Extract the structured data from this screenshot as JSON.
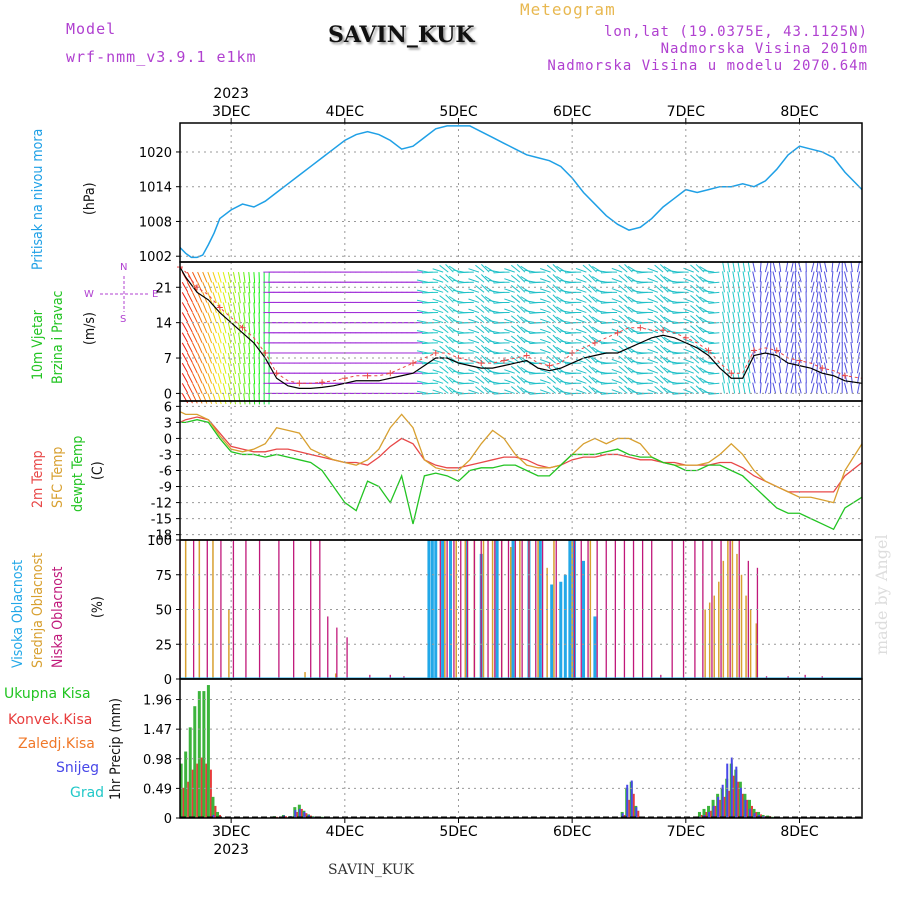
{
  "header": {
    "model_label": "Model",
    "model_name": "wrf-nmm_v3.9.1 e1km",
    "title": "SAVIN_KUK",
    "meteogram": "Meteogram",
    "lonlat": "lon,lat (19.0375E, 43.1125N)",
    "altitude": "Nadmorska Visina 2010m",
    "model_altitude": "Nadmorska Visina u modelu 2070.64m",
    "bottom_title": "SAVIN_KUK",
    "watermark": "made by Angel"
  },
  "colors": {
    "pressure": "#1fa0e6",
    "wind_label": "#22c422",
    "wind_axis": "#b040d0",
    "temp2m": "#e84848",
    "sfc_temp": "#d8a030",
    "dewpt": "#22c422",
    "high_cloud": "#22a8e8",
    "mid_cloud": "#d8a030",
    "low_cloud": "#c0187a",
    "total_precip": "#3cb43c",
    "convective": "#e83c3c",
    "frozen": "#f07828",
    "snow": "#4848e8",
    "hail": "#22c8c8"
  },
  "chart_data": [
    {
      "type": "line",
      "name": "pressure",
      "ylabel_main": "Pritisak na nivou mora",
      "ylabel_unit": "(hPa)",
      "yticks": [
        "1002",
        "1008",
        "1014",
        "1020"
      ],
      "ylim": [
        1001,
        1025
      ],
      "date_labels": [
        "3DEC",
        "4DEC",
        "5DEC",
        "6DEC",
        "7DEC",
        "8DEC"
      ],
      "year_label": "2023",
      "x": [
        2.55,
        2.6,
        2.65,
        2.7,
        2.75,
        2.8,
        2.85,
        2.9,
        3.0,
        3.1,
        3.2,
        3.3,
        3.4,
        3.5,
        3.6,
        3.7,
        3.8,
        3.9,
        4.0,
        4.1,
        4.2,
        4.3,
        4.4,
        4.5,
        4.6,
        4.7,
        4.8,
        4.9,
        5.0,
        5.1,
        5.2,
        5.3,
        5.4,
        5.5,
        5.6,
        5.7,
        5.8,
        5.9,
        6.0,
        6.1,
        6.2,
        6.3,
        6.4,
        6.5,
        6.6,
        6.7,
        6.8,
        6.9,
        7.0,
        7.1,
        7.2,
        7.3,
        7.4,
        7.5,
        7.6,
        7.7,
        7.8,
        7.9,
        8.0,
        8.1,
        8.2,
        8.3,
        8.4,
        8.55
      ],
      "y": [
        1003.5,
        1002.5,
        1001.8,
        1001.8,
        1002.2,
        1004,
        1006,
        1008.5,
        1010,
        1011,
        1010.5,
        1011.5,
        1013,
        1014.5,
        1016,
        1017.5,
        1019,
        1020.5,
        1022,
        1023,
        1023.5,
        1023,
        1022,
        1020.5,
        1021,
        1022.5,
        1024,
        1024.5,
        1024.5,
        1024.5,
        1023.5,
        1022.5,
        1021.5,
        1020.5,
        1019.5,
        1019,
        1018.5,
        1017.5,
        1015.5,
        1013,
        1011,
        1009,
        1007.5,
        1006.5,
        1007,
        1008.5,
        1010.5,
        1012,
        1013.5,
        1013,
        1013.5,
        1014,
        1014,
        1014.5,
        1014,
        1015,
        1017,
        1019.5,
        1021,
        1020.5,
        1020,
        1019,
        1016.5,
        1013.5
      ]
    },
    {
      "type": "line",
      "name": "wind",
      "ylabel_main": "10m Vjetar",
      "ylabel_sub": "Brzina i Pravac",
      "ylabel_unit": "(m/s)",
      "compass": {
        "n": "N",
        "s": "S",
        "e": "E",
        "w": "W"
      },
      "yticks": [
        "0",
        "7",
        "14",
        "21"
      ],
      "ylim": [
        -1.5,
        26
      ],
      "x": [
        2.55,
        2.6,
        2.7,
        2.8,
        2.9,
        3.0,
        3.1,
        3.2,
        3.3,
        3.35,
        3.4,
        3.5,
        3.6,
        3.7,
        3.8,
        3.9,
        4.0,
        4.1,
        4.2,
        4.3,
        4.4,
        4.5,
        4.6,
        4.7,
        4.8,
        4.9,
        5.0,
        5.1,
        5.2,
        5.3,
        5.4,
        5.5,
        5.6,
        5.7,
        5.8,
        5.9,
        6.0,
        6.1,
        6.2,
        6.3,
        6.4,
        6.5,
        6.6,
        6.7,
        6.8,
        6.9,
        7.0,
        7.1,
        7.2,
        7.3,
        7.4,
        7.5,
        7.6,
        7.7,
        7.8,
        7.9,
        8.0,
        8.1,
        8.2,
        8.3,
        8.4,
        8.55
      ],
      "y": [
        25,
        23,
        20,
        18.5,
        16,
        14,
        12,
        10,
        7,
        5,
        3,
        1.5,
        1,
        1,
        1.2,
        1.5,
        2,
        2.5,
        2.5,
        2.5,
        3,
        3.5,
        4,
        5.5,
        7,
        7,
        6,
        5.5,
        5,
        5,
        5.5,
        6,
        6.5,
        5,
        4.5,
        5,
        6,
        7,
        7.5,
        8,
        8,
        9,
        10,
        11,
        11.5,
        11,
        10,
        9,
        7.5,
        5,
        3,
        3,
        7.5,
        8,
        7.5,
        6,
        5.5,
        5,
        4,
        3.5,
        2.5,
        2
      ],
      "gust": [
        25,
        24,
        21,
        19.5,
        17,
        15,
        13,
        11,
        8,
        6,
        4,
        2.5,
        2,
        2,
        2.2,
        2.5,
        3,
        3.5,
        3.5,
        3.5,
        4,
        5,
        6,
        7,
        8,
        8,
        7,
        6.5,
        6,
        6,
        6.5,
        7,
        7.5,
        6,
        5.5,
        6,
        8,
        9,
        10,
        11,
        12,
        13,
        13,
        12.5,
        12.5,
        12,
        11,
        10,
        8.5,
        6,
        4,
        4,
        8.5,
        9,
        8.5,
        7,
        6.5,
        6,
        5,
        4.5,
        3.5,
        3
      ],
      "gust_name": "gust"
    },
    {
      "type": "line",
      "name": "temperature",
      "ylabel_a": "2m Temp",
      "ylabel_b": "SFC Temp",
      "ylabel_c": "dewpt Temp",
      "ylabel_unit": "(C)",
      "yticks": [
        "6",
        "3",
        "0",
        "-3",
        "-6",
        "-9",
        "-12",
        "-15",
        "-18"
      ],
      "ylim": [
        -19,
        7
      ],
      "x": [
        2.55,
        2.6,
        2.7,
        2.8,
        2.9,
        3.0,
        3.1,
        3.2,
        3.3,
        3.4,
        3.5,
        3.6,
        3.7,
        3.8,
        3.9,
        4.0,
        4.1,
        4.2,
        4.3,
        4.4,
        4.5,
        4.6,
        4.7,
        4.8,
        4.9,
        5.0,
        5.1,
        5.2,
        5.3,
        5.4,
        5.5,
        5.6,
        5.7,
        5.8,
        5.9,
        6.0,
        6.1,
        6.2,
        6.3,
        6.4,
        6.5,
        6.6,
        6.7,
        6.8,
        6.9,
        7.0,
        7.1,
        7.2,
        7.3,
        7.4,
        7.5,
        7.6,
        7.7,
        7.8,
        7.9,
        8.0,
        8.1,
        8.2,
        8.3,
        8.4,
        8.55
      ],
      "series": [
        {
          "name": "2m Temp",
          "values": [
            3,
            3.5,
            4,
            3.5,
            1,
            -1.5,
            -2,
            -2.5,
            -2.5,
            -2,
            -2,
            -2.5,
            -3,
            -3.5,
            -4,
            -4.5,
            -4.5,
            -5,
            -3.5,
            -1.5,
            0,
            -1,
            -4,
            -5,
            -5.5,
            -5.5,
            -5,
            -4.5,
            -4,
            -3.5,
            -3.5,
            -4,
            -5,
            -5.5,
            -5,
            -4,
            -3.5,
            -3.5,
            -3,
            -3,
            -3.5,
            -4,
            -4,
            -4.5,
            -4.5,
            -5,
            -5,
            -5,
            -4.5,
            -4.5,
            -5.5,
            -7,
            -8,
            -9,
            -10,
            -10,
            -10,
            -10,
            -10,
            -7,
            -4.5
          ]
        },
        {
          "name": "SFC Temp",
          "values": [
            5,
            4.5,
            4.5,
            3.5,
            0.5,
            -2,
            -2.5,
            -2,
            -1,
            2,
            1.5,
            1,
            -2,
            -3,
            -4,
            -4.5,
            -5,
            -4,
            -2,
            2,
            4.5,
            2,
            -4,
            -5.5,
            -6,
            -6,
            -4,
            -1,
            1.5,
            0,
            -3,
            -5,
            -5.5,
            -5.5,
            -5,
            -3,
            -1,
            0,
            -1,
            0,
            0,
            -1,
            -3.5,
            -4.5,
            -5,
            -5,
            -5,
            -4.5,
            -3,
            -1,
            -3,
            -6,
            -8,
            -9,
            -10,
            -11,
            -11,
            -11.5,
            -12,
            -6,
            -1
          ]
        },
        {
          "name": "dewpt Temp",
          "values": [
            3,
            3,
            3.5,
            3,
            0,
            -2.5,
            -3,
            -3,
            -3.5,
            -3,
            -3.5,
            -4,
            -4.5,
            -6,
            -9,
            -12,
            -13.5,
            -8,
            -9,
            -12,
            -7,
            -16,
            -7,
            -6.5,
            -7,
            -8,
            -6,
            -5.5,
            -5.5,
            -5,
            -5,
            -6,
            -7,
            -7,
            -5,
            -3,
            -3,
            -3,
            -2.5,
            -2,
            -3,
            -3.5,
            -3.5,
            -4.5,
            -5,
            -6,
            -6,
            -5,
            -5,
            -6,
            -7,
            -9,
            -11,
            -13,
            -14,
            -14,
            -15,
            -16,
            -17,
            -13,
            -11
          ]
        }
      ]
    },
    {
      "type": "bar",
      "name": "cloud",
      "ylabel_a": "Visoka Oblacnost",
      "ylabel_b": "Srednja Oblacnost",
      "ylabel_c": "Niska Oblacnost",
      "ylabel_unit": "(%)",
      "yticks": [
        "0",
        "25",
        "50",
        "75",
        "100"
      ],
      "ylim": [
        0,
        100
      ],
      "series": [
        {
          "name": "Visoka Oblacnost",
          "x": [
            4.74,
            4.77,
            4.8,
            4.86,
            4.93,
            5.07,
            5.2,
            5.34,
            5.48,
            5.62,
            5.72,
            5.82,
            5.9,
            5.94,
            5.98,
            6.02,
            6.1,
            6.2
          ],
          "values": [
            100,
            100,
            100,
            100,
            100,
            100,
            90,
            100,
            100,
            100,
            100,
            68,
            70,
            75,
            100,
            100,
            85,
            45
          ]
        },
        {
          "name": "Srednja Oblacnost",
          "x": [
            2.6,
            2.72,
            2.84,
            2.98,
            3.65,
            3.92,
            4.88,
            4.98,
            5.06,
            5.14,
            5.22,
            5.3,
            5.38,
            5.46,
            5.54,
            5.62,
            5.7,
            5.78,
            5.84,
            6.0,
            6.16,
            7.17,
            7.21,
            7.25,
            7.29,
            7.33,
            7.37,
            7.41,
            7.45,
            7.49,
            7.53,
            7.57,
            7.62
          ],
          "values": [
            100,
            100,
            100,
            50,
            5,
            4,
            100,
            100,
            100,
            100,
            100,
            100,
            100,
            95,
            100,
            100,
            100,
            80,
            100,
            100,
            100,
            50,
            55,
            60,
            70,
            85,
            100,
            100,
            90,
            75,
            60,
            50,
            40
          ]
        },
        {
          "name": "Niska Oblacnost",
          "x": [
            2.55,
            2.67,
            2.79,
            2.91,
            3.02,
            3.13,
            3.25,
            3.42,
            3.55,
            3.7,
            3.78,
            3.85,
            3.93,
            4.02,
            4.22,
            4.4,
            4.52,
            4.84,
            4.9,
            4.96,
            5.02,
            5.08,
            5.14,
            5.2,
            5.26,
            5.32,
            5.38,
            5.44,
            5.5,
            5.56,
            5.62,
            5.68,
            5.74,
            5.86,
            6.02,
            6.08,
            6.14,
            6.22,
            6.3,
            6.38,
            6.46,
            6.54,
            6.62,
            6.7,
            6.78,
            6.88,
            6.98,
            7.08,
            7.15,
            7.23,
            7.31,
            7.39,
            7.47,
            7.55,
            7.63,
            7.71,
            7.9,
            8.05,
            8.2
          ],
          "values": [
            100,
            100,
            100,
            100,
            100,
            100,
            100,
            100,
            100,
            100,
            100,
            45,
            37,
            30,
            3,
            3,
            2,
            100,
            100,
            100,
            100,
            100,
            100,
            100,
            100,
            100,
            100,
            100,
            100,
            100,
            100,
            100,
            100,
            100,
            100,
            100,
            100,
            100,
            100,
            100,
            100,
            100,
            100,
            100,
            3,
            100,
            100,
            100,
            100,
            100,
            100,
            100,
            100,
            85,
            80,
            2,
            2,
            3,
            2
          ]
        }
      ]
    },
    {
      "type": "bar",
      "name": "precipitation",
      "labels": [
        "Ukupna Kisa",
        "Konvek.Kisa",
        "Zaledj.Kisa",
        "Snijeg",
        "Grad"
      ],
      "ylabel_unit": "1hr Precip (mm)",
      "yticks": [
        "0",
        "0.49",
        "0.98",
        "1.47",
        "1.96"
      ],
      "ylim": [
        0,
        2.3
      ],
      "date_labels": [
        "3DEC",
        "4DEC",
        "5DEC",
        "6DEC",
        "7DEC",
        "8DEC"
      ],
      "year_label": "2023",
      "x": [
        2.56,
        2.6,
        2.64,
        2.68,
        2.72,
        2.76,
        2.8,
        2.84,
        2.88,
        3.38,
        3.46,
        3.52,
        3.56,
        3.6,
        3.64,
        3.68,
        3.72,
        3.8,
        6.44,
        6.48,
        6.52,
        6.56,
        7.12,
        7.16,
        7.2,
        7.24,
        7.28,
        7.32,
        7.36,
        7.4,
        7.44,
        7.48,
        7.52,
        7.56,
        7.6,
        7.64,
        7.68,
        7.72,
        7.76
      ],
      "total": [
        0.9,
        1.1,
        1.5,
        1.85,
        2.1,
        2.1,
        2.2,
        0.35,
        0.1,
        0.03,
        0.05,
        0.03,
        0.18,
        0.22,
        0.12,
        0.06,
        0.03,
        0.02,
        0.1,
        0.5,
        0.6,
        0.2,
        0.1,
        0.15,
        0.2,
        0.3,
        0.4,
        0.5,
        0.65,
        0.9,
        0.8,
        0.6,
        0.4,
        0.3,
        0.15,
        0.1,
        0.05,
        0.04,
        0.02
      ],
      "convective": [
        0.5,
        0.6,
        0.8,
        0.9,
        1.0,
        0.9,
        0.8,
        0.2,
        0.05,
        0.02,
        0.03,
        0.02,
        0.1,
        0.15,
        0.08,
        0.04,
        0.02,
        0.01,
        0.05,
        0.3,
        0.4,
        0.12,
        0.05,
        0.1,
        0.12,
        0.2,
        0.3,
        0.35,
        0.45,
        0.7,
        0.6,
        0.4,
        0.3,
        0.2,
        0.1,
        0.06,
        0.03,
        0.03,
        0.01
      ],
      "snow": [
        0,
        0,
        0,
        0,
        0,
        0,
        0,
        0.05,
        0,
        0.02,
        0.04,
        0.03,
        0.13,
        0.15,
        0.1,
        0.05,
        0.02,
        0.01,
        0.08,
        0.55,
        0.62,
        0.18,
        0.02,
        0.05,
        0.1,
        0.2,
        0.35,
        0.55,
        0.9,
        1.0,
        0.85,
        0.5,
        0.3,
        0.15,
        0.08,
        0.05,
        0.03,
        0.02,
        0.01
      ]
    }
  ]
}
